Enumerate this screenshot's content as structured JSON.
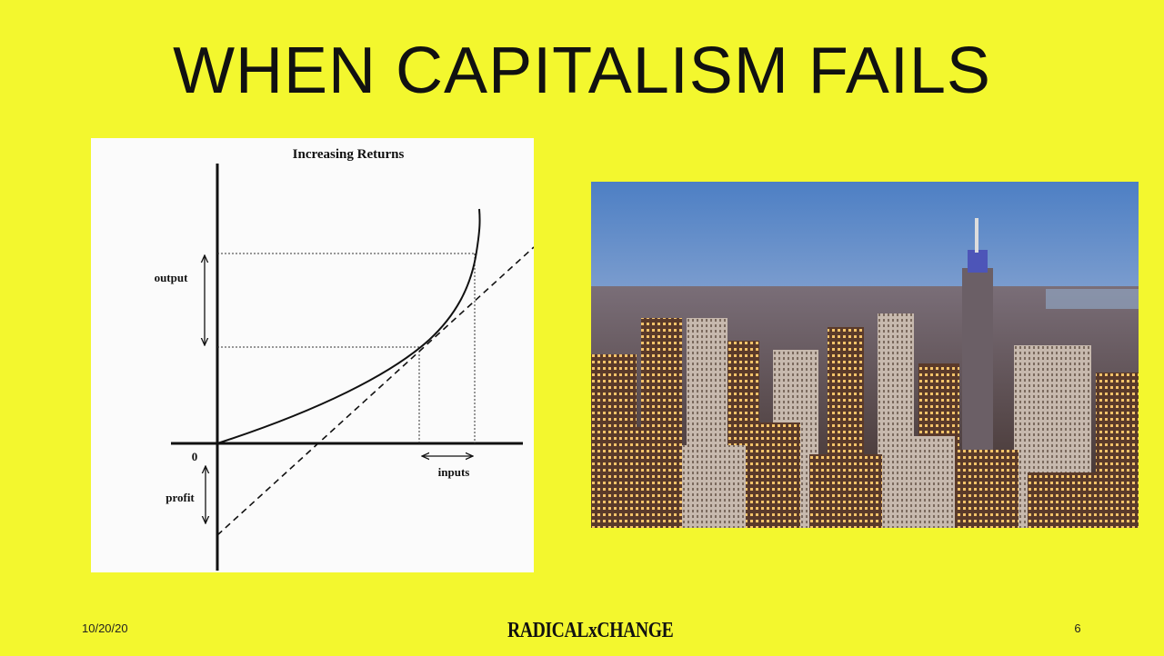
{
  "slide": {
    "title": "WHEN CAPITALISM FAILS",
    "date": "10/20/20",
    "logo_text": "RADICALxCHANGE",
    "page_number": "6"
  },
  "diagram": {
    "title": "Increasing Returns",
    "origin_label": "0",
    "output_label": "output",
    "profit_label": "profit",
    "inputs_label": "inputs"
  },
  "photo": {
    "subject": "city skyline at dusk"
  },
  "colors": {
    "background": "#f3f72e",
    "text": "#111111"
  }
}
